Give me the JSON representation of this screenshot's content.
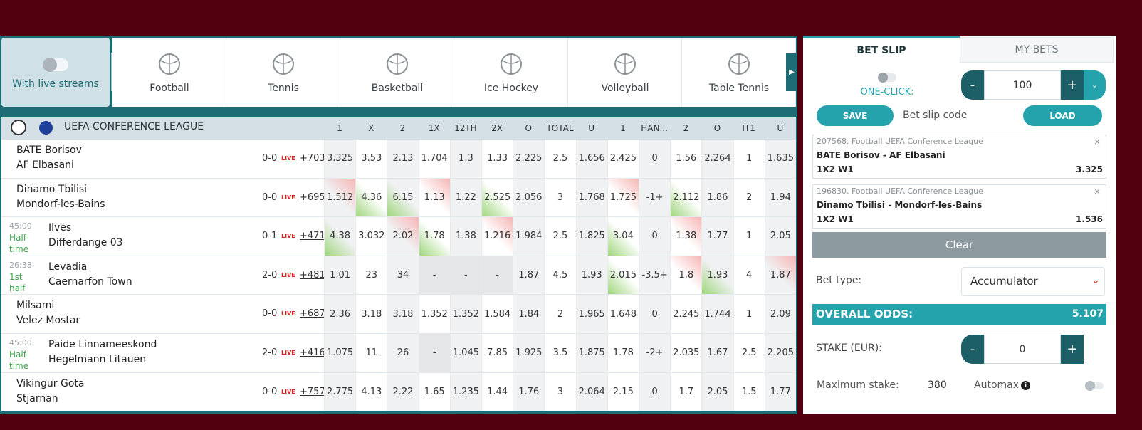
{
  "filter": {
    "label": "With live streams"
  },
  "sports": [
    "Football",
    "Tennis",
    "Basketball",
    "Ice Hockey",
    "Volleyball",
    "Table Tennis"
  ],
  "league": {
    "name": "UEFA CONFERENCE LEAGUE",
    "columns": [
      "1",
      "X",
      "2",
      "1X",
      "12TH",
      "2X",
      "O",
      "TOTAL",
      "U",
      "1",
      "HAN...",
      "2",
      "O",
      "IT1",
      "U"
    ]
  },
  "matches": [
    {
      "home": "BATE Borisov",
      "away": "AF Elbasani",
      "score": "0-0",
      "live": "LIVE",
      "more": "+703",
      "odds": [
        "3.325",
        "3.53",
        "2.13",
        "1.704",
        "1.3",
        "1.33",
        "2.225",
        "2.5",
        "1.656",
        "2.425",
        "0",
        "1.56",
        "2.264",
        "1",
        "1.635"
      ],
      "trend": [
        null,
        null,
        null,
        null,
        null,
        null,
        null,
        null,
        null,
        null,
        null,
        null,
        null,
        null,
        null
      ]
    },
    {
      "home": "Dinamo Tbilisi",
      "away": "Mondorf-les-Bains",
      "score": "0-0",
      "live": "LIVE",
      "more": "+695",
      "odds": [
        "1.512",
        "4.36",
        "6.15",
        "1.13",
        "1.22",
        "2.525",
        "2.056",
        "3",
        "1.768",
        "1.725",
        "-1+",
        "2.112",
        "1.86",
        "2",
        "1.94"
      ],
      "trend": [
        "down",
        "up",
        "up",
        "down",
        null,
        "up",
        null,
        null,
        null,
        "down",
        null,
        "up",
        null,
        null,
        null
      ]
    },
    {
      "time": "45:00",
      "period": "Half-time",
      "home": "Ilves",
      "away": "Differdange 03",
      "score": "0-1",
      "live": "LIVE",
      "more": "+471",
      "odds": [
        "4.38",
        "3.032",
        "2.02",
        "1.78",
        "1.38",
        "1.216",
        "1.984",
        "2.5",
        "1.825",
        "3.04",
        "0",
        "1.38",
        "1.77",
        "1",
        "2.05"
      ],
      "trend": [
        "up",
        null,
        "down",
        "up",
        null,
        "down",
        null,
        null,
        null,
        "up",
        null,
        "down",
        null,
        null,
        null
      ]
    },
    {
      "time": "26:38",
      "period": "1st half",
      "home": "Levadia",
      "away": "Caernarfon Town",
      "score": "2-0",
      "live": "LIVE",
      "more": "+481",
      "odds": [
        "1.01",
        "23",
        "34",
        "-",
        "-",
        "-",
        "1.87",
        "4.5",
        "1.93",
        "2.015",
        "-3.5+",
        "1.8",
        "1.93",
        "4",
        "1.87"
      ],
      "trend": [
        null,
        null,
        null,
        null,
        null,
        null,
        null,
        null,
        null,
        "up",
        null,
        "down",
        "up",
        null,
        "down"
      ]
    },
    {
      "home": "Milsami",
      "away": "Velez Mostar",
      "score": "0-0",
      "live": "LIVE",
      "more": "+687",
      "odds": [
        "2.36",
        "3.18",
        "3.18",
        "1.352",
        "1.352",
        "1.584",
        "1.84",
        "2",
        "1.965",
        "1.648",
        "0",
        "2.245",
        "1.744",
        "1",
        "2.09"
      ],
      "trend": [
        null,
        null,
        null,
        null,
        null,
        null,
        null,
        null,
        null,
        null,
        null,
        null,
        null,
        null,
        null
      ]
    },
    {
      "time": "45:00",
      "period": "Half-time",
      "home": "Paide Linnameeskond",
      "away": "Hegelmann Litauen",
      "score": "2-0",
      "live": "LIVE",
      "more": "+416",
      "odds": [
        "1.075",
        "11",
        "26",
        "-",
        "1.045",
        "7.85",
        "1.925",
        "3.5",
        "1.875",
        "1.78",
        "-2+",
        "2.035",
        "1.67",
        "2.5",
        "2.205"
      ],
      "trend": [
        null,
        null,
        null,
        null,
        null,
        null,
        null,
        null,
        null,
        null,
        null,
        null,
        null,
        null,
        null
      ]
    },
    {
      "home": "Vikingur Gota",
      "away": "Stjarnan",
      "score": "0-0",
      "live": "LIVE",
      "more": "+757",
      "odds": [
        "2.775",
        "4.13",
        "2.22",
        "1.65",
        "1.235",
        "1.44",
        "1.76",
        "3",
        "2.064",
        "2.15",
        "0",
        "1.7",
        "2.05",
        "1.5",
        "1.77"
      ],
      "trend": [
        null,
        null,
        null,
        null,
        null,
        null,
        null,
        null,
        null,
        null,
        null,
        null,
        null,
        null,
        null
      ]
    }
  ],
  "betslip": {
    "tabs": [
      "BET SLIP",
      "MY BETS"
    ],
    "one_click": "ONE-CLICK:",
    "quick_stake": "100",
    "minus": "-",
    "plus": "+",
    "save": "SAVE",
    "code_placeholder": "Bet slip code",
    "load": "LOAD",
    "bets": [
      {
        "id": "207568. Football UEFA Conference League",
        "match": "BATE Borisov - AF Elbasani",
        "market": "1X2 W1",
        "odds": "3.325",
        "close": "×"
      },
      {
        "id": "196830. Football UEFA Conference League",
        "match": "Dinamo Tbilisi - Mondorf-les-Bains",
        "market": "1X2 W1",
        "odds": "1.536",
        "close": "×"
      }
    ],
    "clear": "Clear",
    "bet_type_label": "Bet type:",
    "bet_type": "Accumulator",
    "overall_label": "OVERALL ODDS:",
    "overall": "5.107",
    "stake_label": "STAKE (EUR):",
    "stake": "0",
    "max_label": "Maximum stake:",
    "max": "380",
    "automax": "Automax"
  }
}
